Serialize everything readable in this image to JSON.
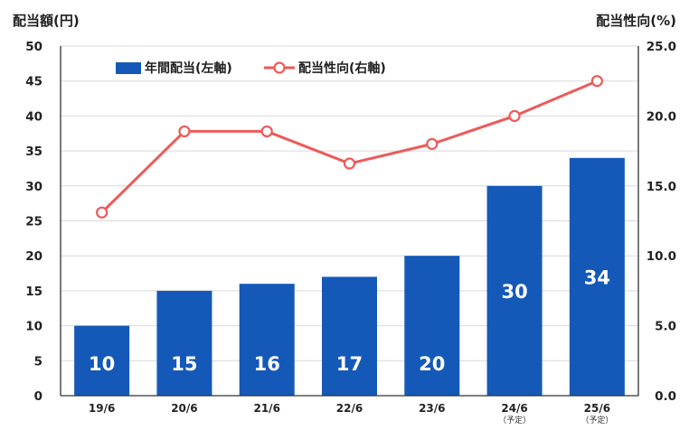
{
  "chart_data": {
    "type": "bar+line",
    "y_left_title": "配当額(円)",
    "y_right_title": "配当性向(%)",
    "left_ticks": [
      "0",
      "5",
      "10",
      "15",
      "20",
      "25",
      "30",
      "35",
      "40",
      "45",
      "50"
    ],
    "right_ticks": [
      "0.0",
      "5.0",
      "10.0",
      "15.0",
      "20.0",
      "25.0"
    ],
    "y_left_lim": [
      0,
      50
    ],
    "y_right_lim": [
      0,
      25
    ],
    "categories": [
      "19/6",
      "20/6",
      "21/6",
      "22/6",
      "23/6",
      "24/6",
      "25/6"
    ],
    "category_notes": [
      "",
      "",
      "",
      "",
      "",
      "（予定）",
      "（予定）"
    ],
    "series": [
      {
        "name": "年間配当(左軸)",
        "axis": "left",
        "type": "bar",
        "color": "#1559b8",
        "values": [
          10,
          15,
          16,
          17,
          20,
          30,
          34
        ],
        "labels": [
          "10",
          "15",
          "16",
          "17",
          "20",
          "30",
          "34"
        ]
      },
      {
        "name": "配当性向(右軸)",
        "axis": "right",
        "type": "line",
        "color": "#ee5a5a",
        "values": [
          13.1,
          18.9,
          18.9,
          16.6,
          18.0,
          20.0,
          22.5
        ]
      }
    ],
    "grid": "horizontal",
    "legend_position": "top"
  }
}
